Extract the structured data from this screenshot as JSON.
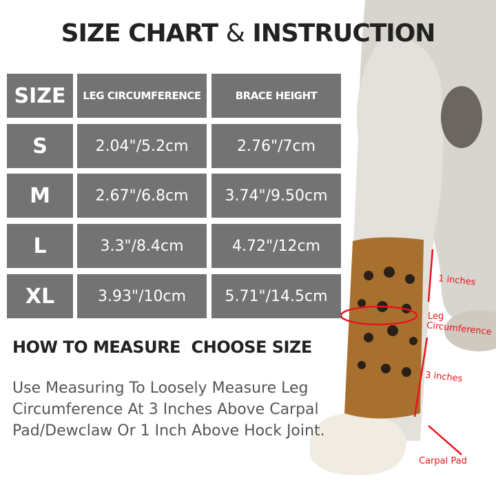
{
  "title": {
    "part1": "SIZE CHART",
    "amp": "&",
    "part2": "INSTRUCTION"
  },
  "table": {
    "headers": [
      "SIZE",
      "LEG CIRCUMFERENCE",
      "BRACE HEIGHT"
    ],
    "rows": [
      [
        "S",
        "2.04\"/5.2cm",
        "2.76\"/7cm"
      ],
      [
        "M",
        "2.67\"/6.8cm",
        "3.74\"/9.50cm"
      ],
      [
        "L",
        "3.3\"/8.4cm",
        "4.72\"/12cm"
      ],
      [
        "XL",
        "3.93\"/10cm",
        "5.71\"/14.5cm"
      ]
    ]
  },
  "how_to": {
    "heading": "HOW TO MEASURE  CHOOSE SIZE",
    "description": "Use Measuring To Loosely Measure Leg Circumference At 3 Inches Above Carpal Pad/Dewclaw Or 1 Inch Above Hock Joint."
  },
  "annotations": {
    "top": "1 inches",
    "circ1": "Leg",
    "circ2": "Circumference",
    "bottom": "3 inches",
    "pad": "Carpal Pad"
  },
  "colors": {
    "cell": "#737373",
    "annotation": "#e8141b",
    "brace": "#a8702f"
  }
}
